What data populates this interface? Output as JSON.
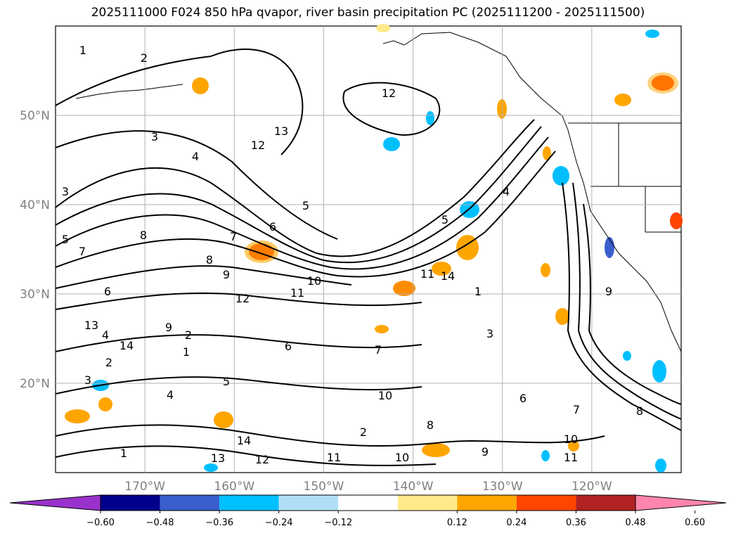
{
  "title": "2025111000 F024 850 hPa qvapor, river basin precipitation PC (2025111200 - 2025111500)",
  "map": {
    "lat_labels": [
      "50°N",
      "40°N",
      "30°N",
      "20°N"
    ],
    "lon_labels": [
      "170°W",
      "160°W",
      "150°W",
      "140°W",
      "130°W",
      "120°W"
    ],
    "lat_values": [
      50,
      40,
      30,
      20
    ],
    "lon_values": [
      -170,
      -160,
      -150,
      -140,
      -130,
      -120
    ],
    "lat_range": [
      10,
      60
    ],
    "lon_range": [
      -180,
      -110
    ],
    "contour_variable": "850 hPa qvapor",
    "contour_labels": [
      "1",
      "2",
      "3",
      "4",
      "5",
      "6",
      "7",
      "8",
      "9",
      "10",
      "11",
      "12",
      "13",
      "14"
    ],
    "land_color": "#ffffff",
    "grid": true
  },
  "colorbar": {
    "ticks": [
      "−0.60",
      "−0.48",
      "−0.36",
      "−0.24",
      "−0.12",
      "0.12",
      "0.24",
      "0.36",
      "0.48",
      "0.60"
    ],
    "colors": [
      "#9932cc",
      "#00008b",
      "#3a5fcd",
      "#00bfff",
      "#b0e0f8",
      "#ffffff",
      "#ffe98a",
      "#ffa500",
      "#ff4500",
      "#b22222",
      "#ff85ad"
    ],
    "extend": "both"
  }
}
